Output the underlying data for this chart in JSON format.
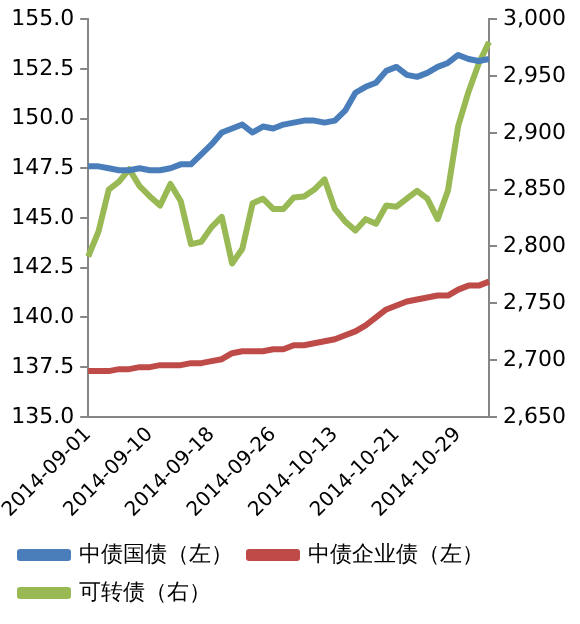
{
  "chart_data": {
    "type": "line",
    "categories": [
      "2014-09-01",
      null,
      null,
      null,
      null,
      null,
      "2014-09-10",
      null,
      null,
      null,
      null,
      null,
      "2014-09-18",
      null,
      null,
      null,
      null,
      null,
      "2014-09-26",
      null,
      null,
      null,
      null,
      null,
      "2014-10-13",
      null,
      null,
      null,
      null,
      null,
      "2014-10-21",
      null,
      null,
      null,
      null,
      null,
      "2014-10-29",
      null,
      null,
      null
    ],
    "series": [
      {
        "name": "中债国债（左）",
        "color": "#4a7ebb",
        "values": [
          147.6,
          147.6,
          147.5,
          147.4,
          147.4,
          147.5,
          147.4,
          147.4,
          147.5,
          147.7,
          147.7,
          148.2,
          148.7,
          149.3,
          149.5,
          149.7,
          149.3,
          149.6,
          149.5,
          149.7,
          149.8,
          149.9,
          149.9,
          149.8,
          149.9,
          150.4,
          151.3,
          151.6,
          151.8,
          152.4,
          152.6,
          152.2,
          152.1,
          152.3,
          152.6,
          152.8,
          153.2,
          153.0,
          152.9,
          153.0
        ]
      },
      {
        "name": "中债企业债（左）",
        "color": "#be4b48",
        "values": [
          137.3,
          137.3,
          137.3,
          137.4,
          137.4,
          137.5,
          137.5,
          137.6,
          137.6,
          137.6,
          137.7,
          137.7,
          137.8,
          137.9,
          138.2,
          138.3,
          138.3,
          138.3,
          138.4,
          138.4,
          138.6,
          138.6,
          138.7,
          138.8,
          138.9,
          139.1,
          139.3,
          139.6,
          140.0,
          140.4,
          140.6,
          140.8,
          140.9,
          141.0,
          141.1,
          141.1,
          141.4,
          141.6,
          141.6,
          141.8
        ]
      },
      {
        "name": "可转债（右）",
        "color": "#98b954",
        "axis": "y2",
        "values": [
          2791,
          2813,
          2850,
          2857,
          2868,
          2853,
          2844,
          2836,
          2855,
          2840,
          2802,
          2804,
          2817,
          2826,
          2785,
          2798,
          2838,
          2842,
          2833,
          2833,
          2843,
          2844,
          2850,
          2859,
          2833,
          2822,
          2814,
          2824,
          2820,
          2836,
          2835,
          2842,
          2849,
          2842,
          2824,
          2849,
          2906,
          2936,
          2961,
          2980
        ]
      }
    ],
    "ylim": [
      135,
      155
    ],
    "yticks": [
      {
        "value": 135,
        "label": "135.0"
      },
      {
        "value": 137.5,
        "label": "137.5"
      },
      {
        "value": 140,
        "label": "140.0"
      },
      {
        "value": 142.5,
        "label": "142.5"
      },
      {
        "value": 145,
        "label": "145.0"
      },
      {
        "value": 147.5,
        "label": "147.5"
      },
      {
        "value": 150,
        "label": "150.0"
      },
      {
        "value": 152.5,
        "label": "152.5"
      },
      {
        "value": 155,
        "label": "155.0"
      }
    ],
    "y2lim": [
      2650,
      3000
    ],
    "y2ticks": [
      {
        "value": 2650,
        "label": "2,650"
      },
      {
        "value": 2700,
        "label": "2,700"
      },
      {
        "value": 2750,
        "label": "2,750"
      },
      {
        "value": 2800,
        "label": "2,800"
      },
      {
        "value": 2850,
        "label": "2,850"
      },
      {
        "value": 2900,
        "label": "2,900"
      },
      {
        "value": 2950,
        "label": "2,950"
      },
      {
        "value": 3000,
        "label": "3,000"
      }
    ],
    "grid": false,
    "legend": "bottom",
    "marker": "none",
    "line_style": "solid"
  }
}
